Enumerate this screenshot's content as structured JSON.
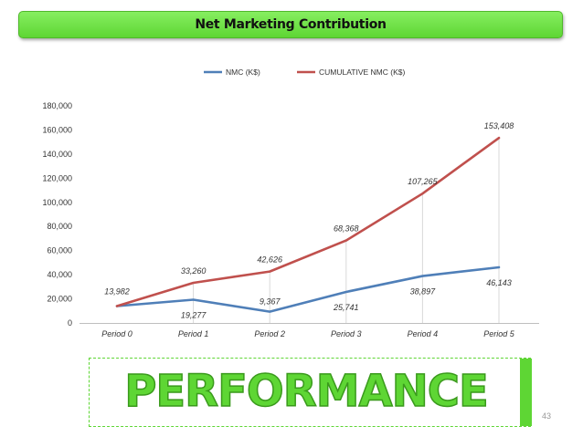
{
  "title": "Net Marketing Contribution",
  "chart_data": {
    "type": "line",
    "categories": [
      "Period 0",
      "Period 1",
      "Period 2",
      "Period 3",
      "Period 4",
      "Period 5"
    ],
    "series": [
      {
        "name": "NMC (K$)",
        "color": "#4f7fb8",
        "values": [
          13982,
          19277,
          9367,
          25741,
          38897,
          46143
        ]
      },
      {
        "name": "CUMULATIVE NMC (K$)",
        "color": "#c0504d",
        "values": [
          13982,
          33260,
          42626,
          68368,
          107265,
          153408
        ]
      }
    ],
    "data_labels": {
      "NMC (K$)": [
        "13,982",
        "19,277",
        "9,367",
        "25,741",
        "38,897",
        "46,143"
      ],
      "CUMULATIVE NMC (K$)": [
        "",
        "33,260",
        "42,626",
        "68,368",
        "107,265",
        "153,408"
      ]
    },
    "y_ticks": [
      "0",
      "20,000",
      "40,000",
      "60,000",
      "80,000",
      "100,000",
      "120,000",
      "140,000",
      "160,000",
      "180,000"
    ],
    "ylim": [
      0,
      180000
    ],
    "grid": "vertical drop lines",
    "legend": "top"
  },
  "banner": {
    "text": "PERFORMANCE"
  },
  "page_number": "43",
  "colors": {
    "accent_green": "#5ed634"
  }
}
